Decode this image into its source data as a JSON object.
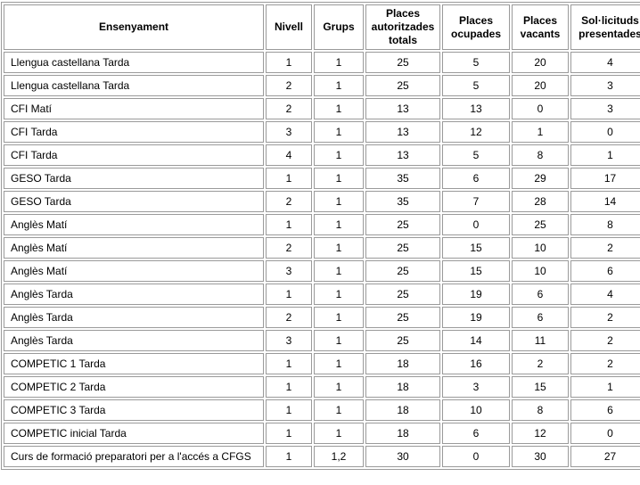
{
  "table": {
    "title_semantic": "places-enrollment-table",
    "border_color": "#9a9a9a",
    "text_color": "#000000",
    "columns": [
      "Ensenyament",
      "Nivell",
      "Grups",
      "Places autoritzades totals",
      "Places ocupades",
      "Places vacants",
      "Sol·licituds presentades"
    ],
    "rows": [
      [
        "Llengua castellana Tarda",
        "1",
        "1",
        "25",
        "5",
        "20",
        "4"
      ],
      [
        "Llengua castellana Tarda",
        "2",
        "1",
        "25",
        "5",
        "20",
        "3"
      ],
      [
        "CFI Matí",
        "2",
        "1",
        "13",
        "13",
        "0",
        "3"
      ],
      [
        "CFI Tarda",
        "3",
        "1",
        "13",
        "12",
        "1",
        "0"
      ],
      [
        "CFI Tarda",
        "4",
        "1",
        "13",
        "5",
        "8",
        "1"
      ],
      [
        "GESO Tarda",
        "1",
        "1",
        "35",
        "6",
        "29",
        "17"
      ],
      [
        "GESO Tarda",
        "2",
        "1",
        "35",
        "7",
        "28",
        "14"
      ],
      [
        "Anglès Matí",
        "1",
        "1",
        "25",
        "0",
        "25",
        "8"
      ],
      [
        "Anglès Matí",
        "2",
        "1",
        "25",
        "15",
        "10",
        "2"
      ],
      [
        "Anglès Matí",
        "3",
        "1",
        "25",
        "15",
        "10",
        "6"
      ],
      [
        "Anglès Tarda",
        "1",
        "1",
        "25",
        "19",
        "6",
        "4"
      ],
      [
        "Anglès Tarda",
        "2",
        "1",
        "25",
        "19",
        "6",
        "2"
      ],
      [
        "Anglès Tarda",
        "3",
        "1",
        "25",
        "14",
        "11",
        "2"
      ],
      [
        "COMPETIC 1 Tarda",
        "1",
        "1",
        "18",
        "16",
        "2",
        "2"
      ],
      [
        "COMPETIC 2 Tarda",
        "1",
        "1",
        "18",
        "3",
        "15",
        "1"
      ],
      [
        "COMPETIC 3 Tarda",
        "1",
        "1",
        "18",
        "10",
        "8",
        "6"
      ],
      [
        "COMPETIC inicial Tarda",
        "1",
        "1",
        "18",
        "6",
        "12",
        "0"
      ],
      [
        "Curs de formació preparatori per a l'accés a CFGS",
        "1",
        "1,2",
        "30",
        "0",
        "30",
        "27"
      ]
    ]
  }
}
